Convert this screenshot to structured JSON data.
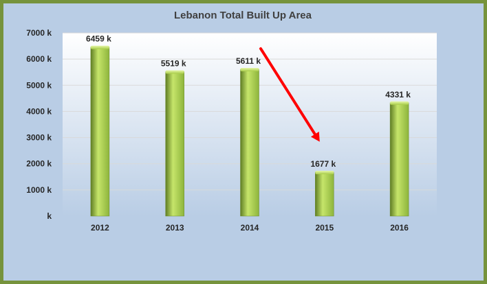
{
  "colors": {
    "frame_border": "#76933c",
    "chart_background": "#b9cde5",
    "plot_background_top": "#ffffff",
    "plot_background_bottom": "#b9cde5",
    "bar_light": "#c6e56a",
    "bar_mid": "#8db43c",
    "bar_dark": "#5f7d24",
    "arrow": "#ff0000",
    "text": "#262626"
  },
  "chart_data": {
    "type": "bar",
    "title": "Lebanon Total Built Up Area",
    "categories": [
      "2012",
      "2013",
      "2014",
      "2015",
      "2016"
    ],
    "values": [
      6459,
      5519,
      5611,
      1677,
      4331
    ],
    "data_labels": [
      "6459 k",
      "5519 k",
      "5611 k",
      "1677 k",
      "4331 k"
    ],
    "ylim": [
      0,
      7000
    ],
    "ytick_values": [
      0,
      1000,
      2000,
      3000,
      4000,
      5000,
      6000,
      7000
    ],
    "ytick_labels": [
      "k",
      "1000 k",
      "2000 k",
      "3000 k",
      "4000 k",
      "5000 k",
      "6000 k",
      "7000 k"
    ],
    "xlabel": "",
    "ylabel": "",
    "grid": true,
    "legend": "none",
    "annotations": [
      {
        "type": "arrow",
        "color": "red",
        "from": {
          "x": "2014",
          "y": 6400
        },
        "to": {
          "x": "2015",
          "y": 2500
        }
      }
    ]
  }
}
